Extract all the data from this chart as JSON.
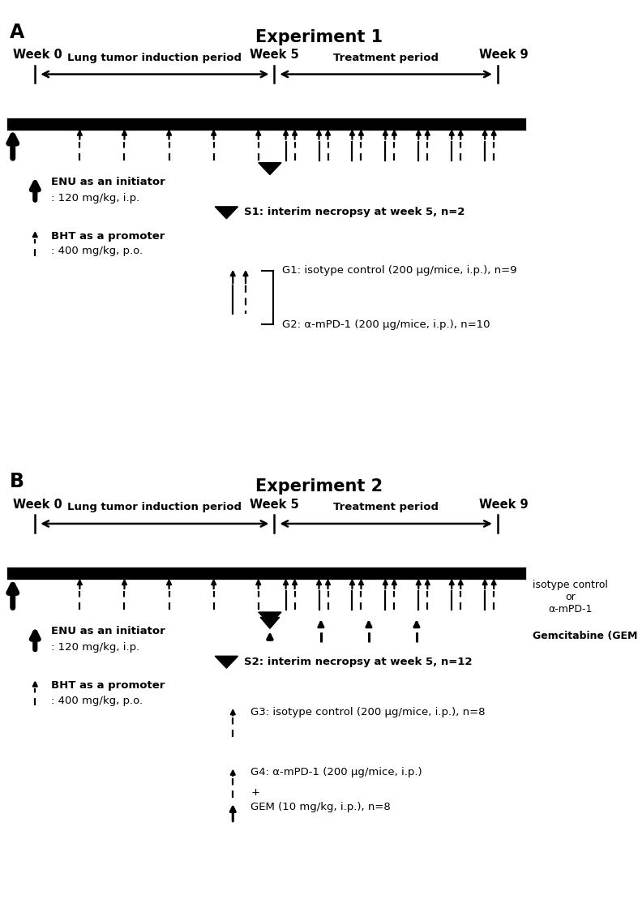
{
  "fig_width": 7.87,
  "fig_height": 11.2,
  "bg_color": "#ffffff",
  "panel_A": {
    "label": "A",
    "title": "Experiment 1",
    "week0_label": "Week 0",
    "week5_label": "Week 5",
    "week9_label": "Week 9",
    "induction_label": "Lung tumor induction period",
    "treatment_label": "Treatment period",
    "legend_ENU_line1": "ENU as an initiator",
    "legend_ENU_line2": ": 120 mg/kg, i.p.",
    "legend_BHT_line1": "BHT as a promoter",
    "legend_BHT_line2": ": 400 mg/kg, p.o.",
    "S1_text": "S1: interim necropsy at week 5, n=2",
    "G1_text": "G1: isotype control (200 μg/mice, i.p.), n=9",
    "G2_text": "G2: α-mPD-1 (200 μg/mice, i.p.), n=10"
  },
  "panel_B": {
    "label": "B",
    "title": "Experiment 2",
    "week0_label": "Week 0",
    "week5_label": "Week 5",
    "week9_label": "Week 9",
    "induction_label": "Lung tumor induction period",
    "treatment_label": "Treatment period",
    "legend_ENU_line1": "ENU as an initiator",
    "legend_ENU_line2": ": 120 mg/kg, i.p.",
    "legend_BHT_line1": "BHT as a promoter",
    "legend_BHT_line2": ": 400 mg/kg, p.o.",
    "S2_text": "S2: interim necropsy at week 5, n=12",
    "G3_text": "G3: isotype control (200 μg/mice, i.p.), n=8",
    "G4_line1": "G4: α-mPD-1 (200 μg/mice, i.p.)",
    "G4_line2": "+",
    "G4_line3": "GEM (10 mg/kg, i.p.), n=8",
    "isotype_label": "isotype control\nor\nα-mPD-1",
    "gem_label": "Gemcitabine (GEM)"
  }
}
